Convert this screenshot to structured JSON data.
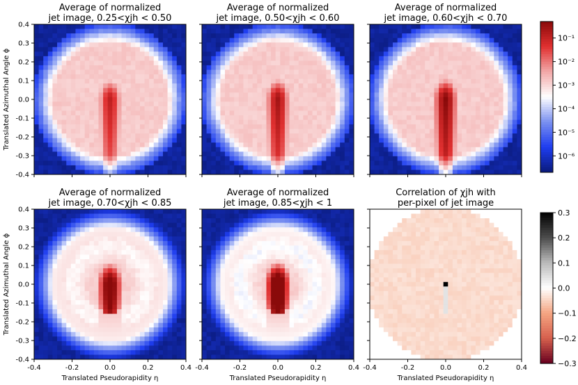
{
  "chart_data": {
    "type": "heatmap",
    "shared_axes": {
      "x_range": [
        -0.4,
        0.4
      ],
      "y_range": [
        -0.4,
        0.4
      ],
      "x_ticks": [
        "-0.4",
        "-0.2",
        "0.0",
        "0.2",
        "0.4"
      ],
      "y_ticks": [
        "-0.4",
        "-0.3",
        "-0.2",
        "-0.1",
        "0.0",
        "0.1",
        "0.2",
        "0.3",
        "0.4"
      ],
      "xlabel": "Translated Pseudorapidity η",
      "ylabel": "Translated Azimuthal Angle ϕ",
      "grid_resolution": 33
    },
    "panels": [
      {
        "title1": "Average of normalized",
        "title2": "jet image, 0.25<χjh < 0.50",
        "kind": "avg",
        "core": 0.9,
        "plume": 0.55,
        "tail": 0.3,
        "edge": 0.0
      },
      {
        "title1": "Average of normalized",
        "title2": "jet image, 0.50<χjh < 0.60",
        "kind": "avg",
        "core": 0.92,
        "plume": 0.6,
        "tail": 0.35,
        "edge": 0.1
      },
      {
        "title1": "Average of normalized",
        "title2": "jet image, 0.60<χjh < 0.70",
        "kind": "avg",
        "core": 0.94,
        "plume": 0.65,
        "tail": 0.4,
        "edge": 0.2
      },
      {
        "title1": "Average of normalized",
        "title2": "jet image, 0.70<χjh < 0.85",
        "kind": "avg",
        "core": 0.96,
        "plume": 0.72,
        "tail": 0.55,
        "edge": 0.45
      },
      {
        "title1": "Average of normalized",
        "title2": "jet image, 0.85<χjh < 1",
        "kind": "avg",
        "core": 0.98,
        "plume": 0.8,
        "tail": 0.65,
        "edge": 0.6
      },
      {
        "title1": "Correlation of χjh with",
        "title2": "per-pixel of jet image",
        "kind": "corr"
      }
    ],
    "colorbar_top": {
      "scale": "log",
      "colors": [
        "#0a1a7a",
        "#1e3df0",
        "#7a90f0",
        "#ffffff",
        "#f2a8a8",
        "#e03030",
        "#8a0a0a"
      ],
      "ticks": [
        "10⁻¹",
        "10⁻²",
        "10⁻³",
        "10⁻⁴",
        "10⁻⁵",
        "10⁻⁶"
      ],
      "tick_values": [
        0.1,
        0.01,
        0.001,
        0.0001,
        1e-05,
        1e-06
      ],
      "range": [
        2e-07,
        0.5
      ]
    },
    "colorbar_bottom": {
      "scale": "linear",
      "colors": [
        "#67001f",
        "#d6604d",
        "#f4a582",
        "#ffffff",
        "#bababa",
        "#4d4d4d",
        "#000000"
      ],
      "ticks": [
        "0.3",
        "0.2",
        "0.1",
        "0.0",
        "−0.1",
        "−0.2",
        "−0.3"
      ],
      "tick_values": [
        0.3,
        0.2,
        0.1,
        0.0,
        -0.1,
        -0.2,
        -0.3
      ],
      "range": [
        -0.3,
        0.3
      ]
    }
  }
}
